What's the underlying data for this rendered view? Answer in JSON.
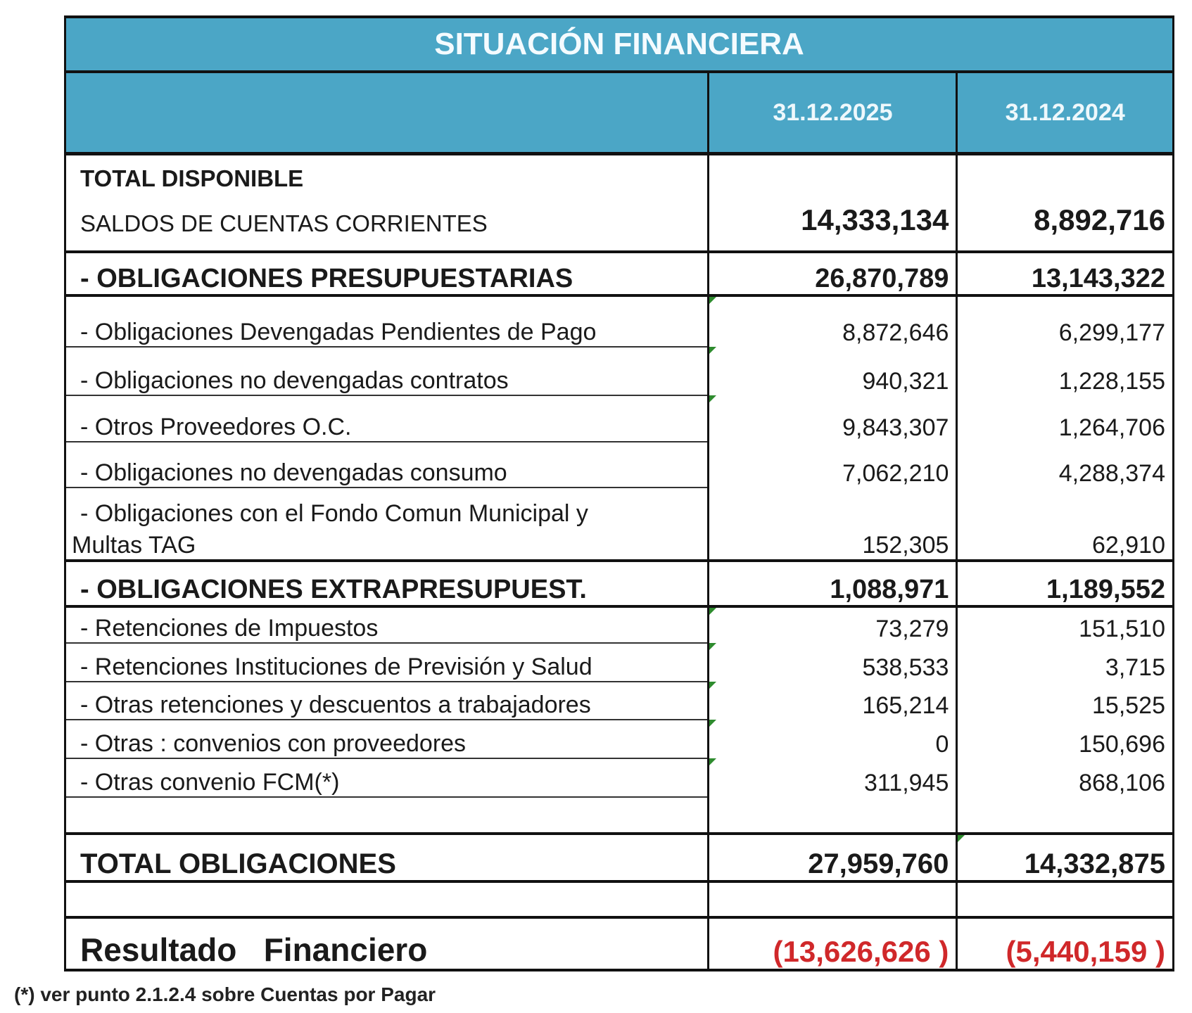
{
  "title": "SITUACIÓN FINANCIERA",
  "columns": [
    "31.12.2025",
    "31.12.2024"
  ],
  "total_disponible": {
    "heading": "TOTAL DISPONIBLE",
    "label": "SALDOS DE CUENTAS CORRIENTES",
    "values": [
      "14,333,134",
      "8,892,716"
    ]
  },
  "presupuestarias": {
    "label": "- OBLIGACIONES PRESUPUESTARIAS",
    "values": [
      "26,870,789",
      "13,143,322"
    ],
    "items": [
      {
        "label": "- Obligaciones Devengadas Pendientes de Pago",
        "values": [
          "8,872,646",
          "6,299,177"
        ]
      },
      {
        "label": "- Obligaciones no devengadas contratos",
        "values": [
          "940,321",
          "1,228,155"
        ]
      },
      {
        "label": "- Otros Proveedores O.C.",
        "values": [
          "9,843,307",
          "1,264,706"
        ]
      },
      {
        "label": "- Obligaciones no devengadas consumo",
        "values": [
          "7,062,210",
          "4,288,374"
        ]
      },
      {
        "label": "- Obligaciones con el Fondo Comun Municipal y",
        "label2": "Multas TAG",
        "values": [
          "152,305",
          "62,910"
        ]
      }
    ]
  },
  "extrapresupuestarias": {
    "label": "- OBLIGACIONES EXTRAPRESUPUEST.",
    "values": [
      "1,088,971",
      "1,189,552"
    ],
    "items": [
      {
        "label": "- Retenciones de Impuestos",
        "values": [
          "73,279",
          "151,510"
        ]
      },
      {
        "label": "- Retenciones Instituciones de Previsión y Salud",
        "values": [
          "538,533",
          "3,715"
        ]
      },
      {
        "label": "- Otras retenciones y descuentos a trabajadores",
        "values": [
          "165,214",
          "15,525"
        ]
      },
      {
        "label": "- Otras : convenios con proveedores",
        "values": [
          "0",
          "150,696"
        ]
      },
      {
        "label": "- Otras convenio  FCM(*)",
        "values": [
          "311,945",
          "868,106"
        ]
      }
    ]
  },
  "total_obligaciones": {
    "label": "TOTAL OBLIGACIONES",
    "values": [
      "27,959,760",
      "14,332,875"
    ]
  },
  "resultado": {
    "label": "Resultado   Financiero",
    "values": [
      "(13,626,626 )",
      "(5,440,159 )"
    ]
  },
  "footnote": "(*) ver punto 2.1.2.4 sobre Cuentas por Pagar",
  "colors": {
    "header_bg": "#4ba6c6",
    "negative": "#d0282a"
  }
}
